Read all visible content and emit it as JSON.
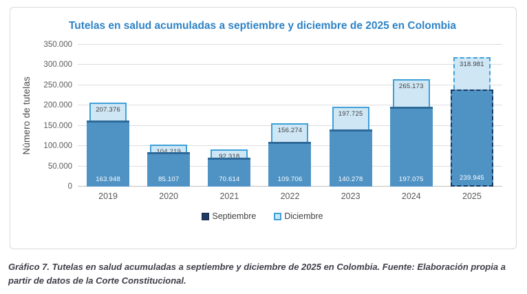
{
  "chart_data": {
    "type": "bar",
    "title": "Tutelas en salud acumuladas a septiembre y diciembre de 2025 en Colombia",
    "ylabel": "Número de tutelas",
    "xlabel": "",
    "categories": [
      "2019",
      "2020",
      "2021",
      "2022",
      "2023",
      "2024",
      "2025"
    ],
    "series": [
      {
        "name": "Septiembre",
        "values": [
          163948,
          85107,
          70614,
          109706,
          140278,
          197075,
          239945
        ],
        "fill": "#4f93c4",
        "edge": "#2d6999",
        "legend_swatch": "#1f3864",
        "value_label_color": "#ffffff"
      },
      {
        "name": "Diciembre",
        "values": [
          207376,
          104219,
          92318,
          156274,
          197725,
          265173,
          318981
        ],
        "fill": "#cfe6f5",
        "edge": "#3da0d9",
        "legend_swatch": "#cfe6f5",
        "value_label_color": "#3f3f3f"
      }
    ],
    "ylim": [
      0,
      350000
    ],
    "ytick_step": 50000,
    "ytick_labels": [
      "0",
      "50.000",
      "100.000",
      "150.000",
      "200.000",
      "250.000",
      "300.000",
      "350.000"
    ],
    "grid": true,
    "legend_position": "bottom",
    "projected_category": "2025",
    "projected_edge_septiembre": "#17375e",
    "title_color": "#2e83c6",
    "axis_text_color": "#595959",
    "number_format": "thousands-dot"
  },
  "caption": "Gráfico 7.  Tutelas en salud acumuladas a septiembre y diciembre de 2025 en Colombia.  Fuente: Elaboración propia a partir de datos de la Corte Constitucional."
}
